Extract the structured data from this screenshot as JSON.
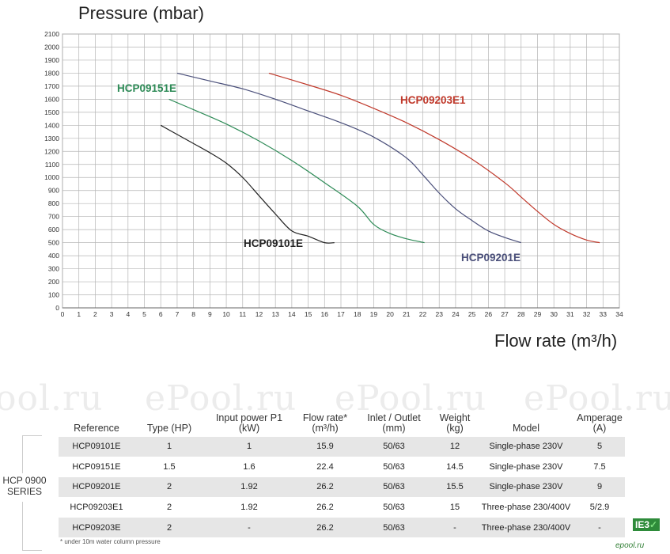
{
  "chart_data": {
    "type": "line",
    "title": "Pressure (mbar)",
    "xlabel": "Flow rate (m³/h)",
    "xlim": [
      0,
      34
    ],
    "ylim": [
      0,
      2100
    ],
    "xticks": [
      0,
      1,
      2,
      3,
      4,
      5,
      6,
      7,
      8,
      9,
      10,
      11,
      12,
      13,
      14,
      15,
      16,
      17,
      18,
      19,
      20,
      21,
      22,
      23,
      24,
      25,
      26,
      27,
      28,
      29,
      30,
      31,
      32,
      33,
      34
    ],
    "yticks": [
      0,
      100,
      200,
      300,
      400,
      500,
      600,
      700,
      800,
      900,
      1000,
      1100,
      1200,
      1300,
      1400,
      1500,
      1600,
      1700,
      1800,
      1900,
      2000,
      2100
    ],
    "grid": true,
    "series": [
      {
        "name": "HCP09101E",
        "color": "#222222",
        "points": [
          [
            6,
            1400
          ],
          [
            7,
            1330
          ],
          [
            8,
            1260
          ],
          [
            9,
            1190
          ],
          [
            10,
            1110
          ],
          [
            11,
            1000
          ],
          [
            12,
            860
          ],
          [
            13,
            720
          ],
          [
            14,
            590
          ],
          [
            15,
            550
          ],
          [
            16,
            500
          ],
          [
            16.6,
            500
          ]
        ]
      },
      {
        "name": "HCP09151E",
        "color": "#2e8b57",
        "points": [
          [
            6.5,
            1600
          ],
          [
            8,
            1520
          ],
          [
            10,
            1410
          ],
          [
            12,
            1280
          ],
          [
            14,
            1130
          ],
          [
            16,
            960
          ],
          [
            18,
            780
          ],
          [
            19,
            640
          ],
          [
            20,
            570
          ],
          [
            21,
            530
          ],
          [
            22.1,
            500
          ]
        ]
      },
      {
        "name": "HCP09201E",
        "color": "#4a4f7a",
        "points": [
          [
            7,
            1800
          ],
          [
            9,
            1740
          ],
          [
            11,
            1680
          ],
          [
            13,
            1600
          ],
          [
            15,
            1510
          ],
          [
            17,
            1420
          ],
          [
            19,
            1310
          ],
          [
            21,
            1150
          ],
          [
            22,
            1020
          ],
          [
            23,
            880
          ],
          [
            24,
            760
          ],
          [
            25,
            670
          ],
          [
            26,
            590
          ],
          [
            27,
            540
          ],
          [
            28,
            500
          ]
        ]
      },
      {
        "name": "HCP09203E1",
        "color": "#c0392b",
        "points": [
          [
            12.6,
            1800
          ],
          [
            15,
            1710
          ],
          [
            17,
            1630
          ],
          [
            19,
            1530
          ],
          [
            21,
            1420
          ],
          [
            23,
            1290
          ],
          [
            25,
            1140
          ],
          [
            27,
            960
          ],
          [
            28,
            850
          ],
          [
            29,
            740
          ],
          [
            30,
            640
          ],
          [
            31,
            570
          ],
          [
            32,
            520
          ],
          [
            32.8,
            500
          ]
        ]
      }
    ],
    "annotations": [
      {
        "text": "HCP09151E",
        "color": "#2e8b57"
      },
      {
        "text": "HCP09101E",
        "color": "#222222"
      },
      {
        "text": "HCP09201E",
        "color": "#4a4f7a"
      },
      {
        "text": "HCP09203E1",
        "color": "#c0392b"
      }
    ]
  },
  "watermark": [
    "ool.ru",
    "ePool.ru",
    "ePool.ru",
    "ePool.ru"
  ],
  "table": {
    "headers": [
      "Reference",
      "Type (HP)",
      "Input power P1\n(kW)",
      "Flow rate*\n(m³/h)",
      "Inlet / Outlet\n(mm)",
      "Weight\n(kg)",
      "Model",
      "Amperage\n(A)"
    ],
    "rows": [
      [
        "HCP09101E",
        "1",
        "1",
        "15.9",
        "50/63",
        "12",
        "Single-phase 230V",
        "5"
      ],
      [
        "HCP09151E",
        "1.5",
        "1.6",
        "22.4",
        "50/63",
        "14.5",
        "Single-phase 230V",
        "7.5"
      ],
      [
        "HCP09201E",
        "2",
        "1.92",
        "26.2",
        "50/63",
        "15.5",
        "Single-phase 230V",
        "9"
      ],
      [
        "HCP09203E1",
        "2",
        "1.92",
        "26.2",
        "50/63",
        "15",
        "Three-phase 230/400V",
        "5/2.9"
      ],
      [
        "HCP09203E",
        "2",
        "-",
        "26.2",
        "50/63",
        "-",
        "Three-phase 230/400V",
        "-"
      ]
    ],
    "series_label_line1": "HCP 0900",
    "series_label_line2": "SERIES",
    "footnote": "* under 10m water column pressure",
    "badge_text": "IE3",
    "badge_tick": "✓",
    "corner_text": "epool.ru"
  }
}
